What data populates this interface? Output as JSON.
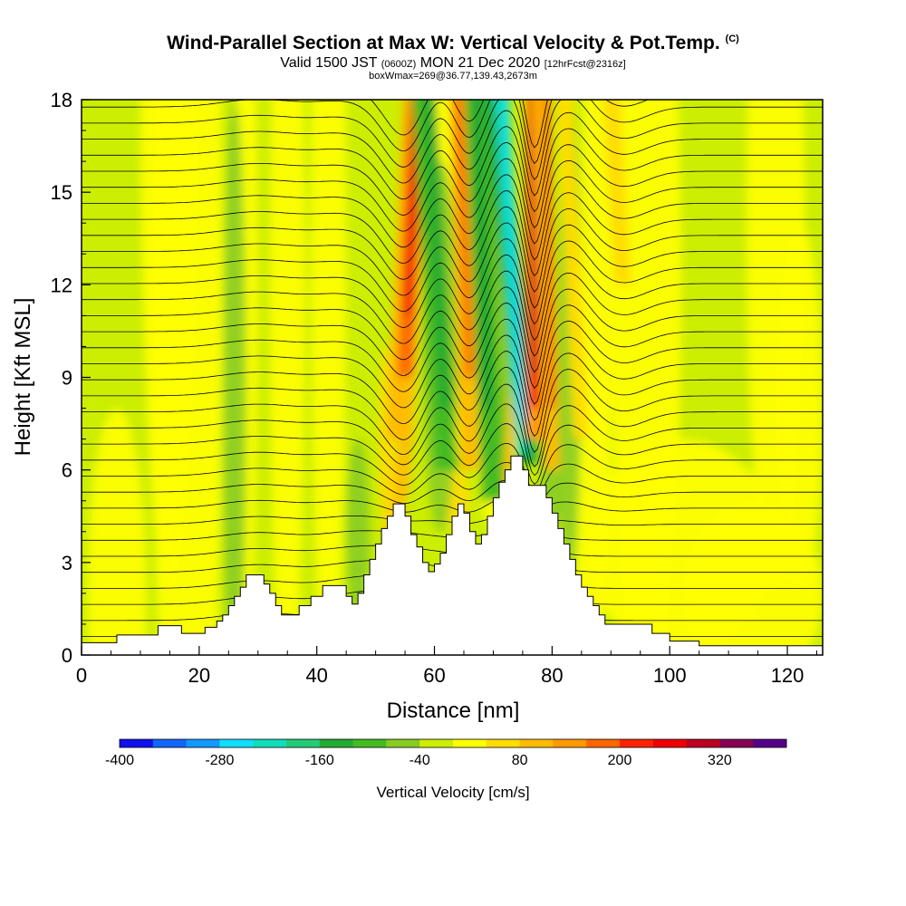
{
  "header": {
    "title": "Wind-Parallel Section at Max W: Vertical Velocity & Pot.Temp.",
    "title_mark": "(C)",
    "valid_pre": "Valid 1500 JST",
    "valid_utc": "(0600Z)",
    "valid_post": "MON 21 Dec 2020",
    "forecast_note": "[12hrFcst@2316z]",
    "box_info": "boxWmax=269@36.77,139.43,2673m"
  },
  "chart_data": {
    "type": "heatmap",
    "title": "Wind-Parallel Section at Max W: Vertical Velocity & Pot.Temp.",
    "xlabel": "Distance [nm]",
    "ylabel": "Height [Kft MSL]",
    "xlim": [
      0,
      126
    ],
    "ylim": [
      0,
      18
    ],
    "x_ticks": [
      0,
      20,
      40,
      60,
      80,
      100,
      120
    ],
    "y_ticks": [
      0,
      3,
      6,
      9,
      12,
      15,
      18
    ],
    "colorbar": {
      "label": "Vertical Velocity [cm/s]",
      "min": -400,
      "max": 400,
      "step": 40,
      "tick_values": [
        -400,
        -280,
        -160,
        -40,
        80,
        200,
        320
      ],
      "colors": [
        "#1111ee",
        "#1166ff",
        "#1199ff",
        "#11ddff",
        "#11ddbb",
        "#22cc77",
        "#22aa33",
        "#44bb22",
        "#88cc22",
        "#ccee00",
        "#ffff00",
        "#ffdd00",
        "#ffbb00",
        "#ff9900",
        "#ff6600",
        "#ff2200",
        "#ee0000",
        "#bb0022",
        "#880055",
        "#550088"
      ]
    },
    "terrain_profile": [
      [
        0,
        0.4
      ],
      [
        6,
        0.4
      ],
      [
        6,
        0.65
      ],
      [
        13,
        0.65
      ],
      [
        13,
        0.95
      ],
      [
        17,
        0.95
      ],
      [
        17,
        0.7
      ],
      [
        21,
        0.7
      ],
      [
        21,
        0.9
      ],
      [
        23,
        0.9
      ],
      [
        23,
        1.1
      ],
      [
        24,
        1.1
      ],
      [
        24,
        1.3
      ],
      [
        25,
        1.3
      ],
      [
        25,
        1.6
      ],
      [
        26,
        1.6
      ],
      [
        26,
        1.9
      ],
      [
        27,
        1.9
      ],
      [
        27,
        2.2
      ],
      [
        28,
        2.2
      ],
      [
        28,
        2.6
      ],
      [
        31,
        2.6
      ],
      [
        31,
        2.3
      ],
      [
        32,
        2.3
      ],
      [
        32,
        2.0
      ],
      [
        33,
        2.0
      ],
      [
        33,
        1.6
      ],
      [
        34,
        1.6
      ],
      [
        34,
        1.3
      ],
      [
        37,
        1.3
      ],
      [
        37,
        1.6
      ],
      [
        39,
        1.6
      ],
      [
        39,
        1.9
      ],
      [
        41,
        1.9
      ],
      [
        41,
        2.25
      ],
      [
        45,
        2.25
      ],
      [
        45,
        1.9
      ],
      [
        46,
        1.9
      ],
      [
        46,
        1.65
      ],
      [
        47,
        1.65
      ],
      [
        47,
        2.0
      ],
      [
        48,
        2.0
      ],
      [
        48,
        2.6
      ],
      [
        49,
        2.6
      ],
      [
        49,
        3.1
      ],
      [
        50,
        3.1
      ],
      [
        50,
        3.6
      ],
      [
        51,
        3.6
      ],
      [
        51,
        4.1
      ],
      [
        52,
        4.1
      ],
      [
        52,
        4.5
      ],
      [
        53,
        4.5
      ],
      [
        53,
        4.9
      ],
      [
        55,
        4.9
      ],
      [
        55,
        4.5
      ],
      [
        56,
        4.5
      ],
      [
        56,
        3.9
      ],
      [
        57,
        3.9
      ],
      [
        57,
        3.5
      ],
      [
        58,
        3.5
      ],
      [
        58,
        3.0
      ],
      [
        59,
        3.0
      ],
      [
        59,
        2.7
      ],
      [
        60,
        2.7
      ],
      [
        60,
        2.95
      ],
      [
        61,
        2.95
      ],
      [
        61,
        3.3
      ],
      [
        62,
        3.3
      ],
      [
        62,
        3.9
      ],
      [
        63,
        3.9
      ],
      [
        63,
        4.5
      ],
      [
        64,
        4.5
      ],
      [
        64,
        4.9
      ],
      [
        65,
        4.9
      ],
      [
        65,
        4.6
      ],
      [
        66,
        4.6
      ],
      [
        66,
        4.0
      ],
      [
        67,
        4.0
      ],
      [
        67,
        3.6
      ],
      [
        68,
        3.6
      ],
      [
        68,
        3.9
      ],
      [
        69,
        3.9
      ],
      [
        69,
        4.5
      ],
      [
        70,
        4.5
      ],
      [
        70,
        5.1
      ],
      [
        71,
        5.1
      ],
      [
        71,
        5.6
      ],
      [
        72,
        5.6
      ],
      [
        72,
        6.0
      ],
      [
        73,
        6.0
      ],
      [
        73,
        6.45
      ],
      [
        75,
        6.45
      ],
      [
        75,
        6.0
      ],
      [
        76,
        6.0
      ],
      [
        76,
        5.5
      ],
      [
        79,
        5.5
      ],
      [
        79,
        5.1
      ],
      [
        80,
        5.1
      ],
      [
        80,
        4.6
      ],
      [
        81,
        4.6
      ],
      [
        81,
        4.1
      ],
      [
        82,
        4.1
      ],
      [
        82,
        3.6
      ],
      [
        83,
        3.6
      ],
      [
        83,
        3.1
      ],
      [
        84,
        3.1
      ],
      [
        84,
        2.6
      ],
      [
        85,
        2.6
      ],
      [
        85,
        2.2
      ],
      [
        86,
        2.2
      ],
      [
        86,
        1.9
      ],
      [
        87,
        1.9
      ],
      [
        87,
        1.6
      ],
      [
        88,
        1.6
      ],
      [
        88,
        1.3
      ],
      [
        89,
        1.3
      ],
      [
        89,
        1.0
      ],
      [
        97,
        1.0
      ],
      [
        97,
        0.7
      ],
      [
        100,
        0.7
      ],
      [
        100,
        0.45
      ],
      [
        105,
        0.45
      ],
      [
        105,
        0.3
      ],
      [
        126,
        0.3
      ]
    ]
  }
}
